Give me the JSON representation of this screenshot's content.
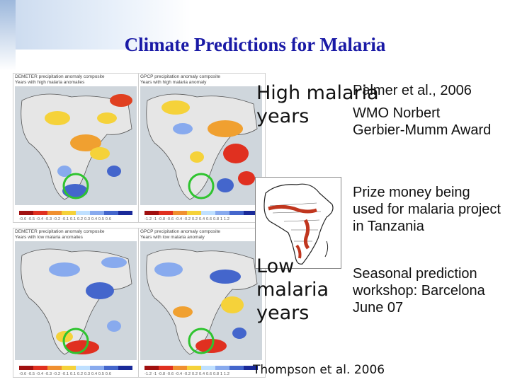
{
  "slide": {
    "title": "Climate Predictions for Malaria",
    "high_label": "High malaria years",
    "low_label": "Low malaria years",
    "reference": "Palmer et al., 2006",
    "award": "WMO Norbert Gerbier-Mumm Award",
    "prize": "Prize money being used for malaria project in Tanzania",
    "workshop": "Seasonal prediction workshop: Barcelona June 07",
    "citation": "Thompson et al. 2006"
  },
  "panels": {
    "demeter_high": {
      "title": "DEMETER precipitation anomaly composite",
      "subtitle": "Years with high malaria anomalies"
    },
    "gpcp_high": {
      "title": "GPCP precipitation anomaly composite",
      "subtitle": "Years with high malaria anomaly"
    },
    "demeter_low": {
      "title": "DEMETER precipitation anomaly composite",
      "subtitle": "Years with low malaria anomalies"
    },
    "gpcp_low": {
      "title": "GPCP precipitation anomaly composite",
      "subtitle": "Years with low malaria anomaly"
    },
    "demeter_scale": "-0.6 -0.5 -0.4 -0.3 -0.2 -0.1 0.1 0.2 0.3 0.4 0.5 0.6",
    "gpcp_scale": "-1.2 -1 -0.8 -0.6 -0.4 -0.2 0.2 0.4 0.6 0.8 1 1.2"
  },
  "colors": {
    "title": "#1a1aa6",
    "highlight_circle": "#2fc42f"
  }
}
